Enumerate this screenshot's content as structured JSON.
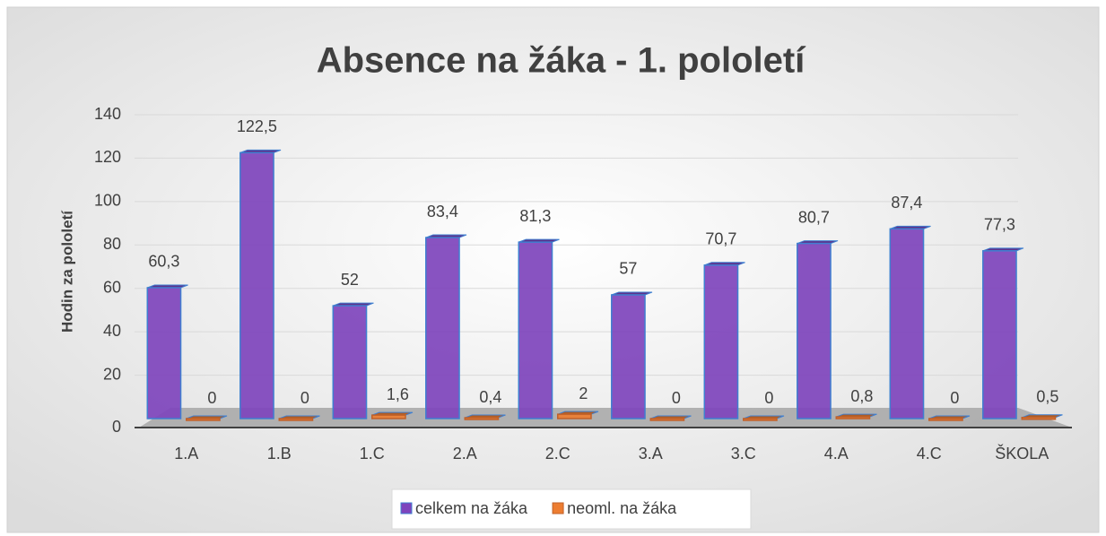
{
  "chart_data": {
    "type": "bar",
    "title": "Absence na žáka - 1. pololetí",
    "y_label": "Hodin za pololetí",
    "categories": [
      "1.A",
      "1.B",
      "1.C",
      "2.A",
      "2.C",
      "3.A",
      "3.C",
      "4.A",
      "4.C",
      "ŠKOLA"
    ],
    "series": [
      {
        "name": "celkem na žáka",
        "color": "#7e44bc",
        "values": [
          60.3,
          122.5,
          52,
          83.4,
          81.3,
          57,
          70.7,
          80.7,
          87.4,
          77.3
        ],
        "value_labels": [
          "60,3",
          "122,5",
          "52",
          "83,4",
          "81,3",
          "57",
          "70,7",
          "80,7",
          "87,4",
          "77,3"
        ]
      },
      {
        "name": "neoml. na žáka",
        "color": "#ed7d31",
        "values": [
          0,
          0,
          1.6,
          0.4,
          2,
          0,
          0,
          0.8,
          0,
          0.5
        ],
        "value_labels": [
          "0",
          "0",
          "1,6",
          "0,4",
          "2",
          "0",
          "0",
          "0,8",
          "0",
          "0,5"
        ]
      }
    ],
    "ylim": [
      0,
      140
    ],
    "yticks": [
      0,
      20,
      40,
      60,
      80,
      100,
      120,
      140
    ],
    "grid": true,
    "legend": "bottom"
  }
}
